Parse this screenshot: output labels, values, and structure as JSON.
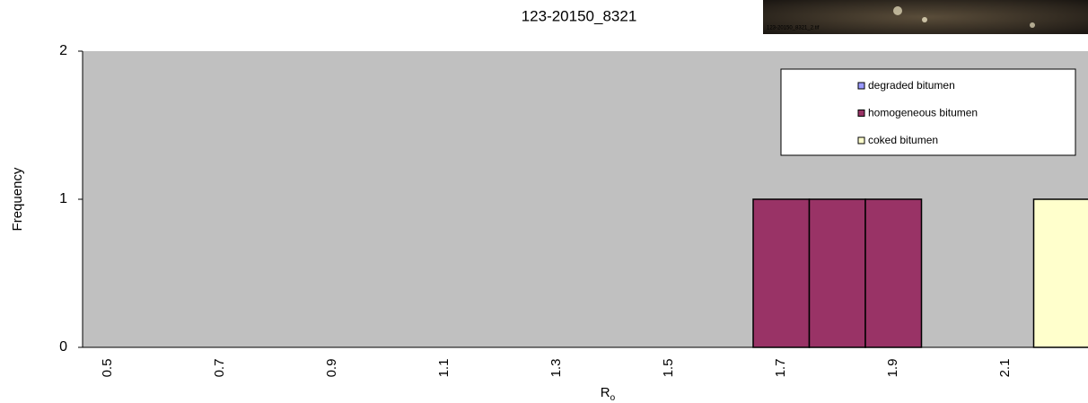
{
  "chart_data": {
    "type": "histogram",
    "title": "123-20150_8321",
    "image_caption": "123-20150_8321_2.tif",
    "y_label": "Frequency",
    "x_label": "R",
    "x_label_subscript": "o",
    "categories": [
      "0.5",
      null,
      "0.7",
      null,
      "0.9",
      null,
      "1.1",
      null,
      "1.3",
      null,
      "1.5",
      null,
      "1.7",
      null,
      "1.9",
      null,
      "2.1",
      null
    ],
    "series": [
      {
        "name": "degraded bitumen",
        "color": "#9999ff",
        "values": [
          0,
          0,
          0,
          0,
          0,
          0,
          0,
          0,
          0,
          0,
          0,
          0,
          0,
          0,
          0,
          0,
          0,
          0
        ]
      },
      {
        "name": "homogeneous bitumen",
        "color": "#993366",
        "values": [
          0,
          0,
          0,
          0,
          0,
          0,
          0,
          0,
          0,
          0,
          0,
          0,
          1,
          1,
          1,
          0,
          0,
          0
        ]
      },
      {
        "name": "coked bitumen",
        "color": "#ffffcc",
        "values": [
          0,
          0,
          0,
          0,
          0,
          0,
          0,
          0,
          0,
          0,
          0,
          0,
          0,
          0,
          0,
          0,
          0,
          1
        ]
      }
    ],
    "ylim": [
      0,
      2
    ],
    "yticks": [
      0,
      1,
      2
    ],
    "grid": false,
    "legend": "top-right",
    "background": "#c0c0c0"
  }
}
